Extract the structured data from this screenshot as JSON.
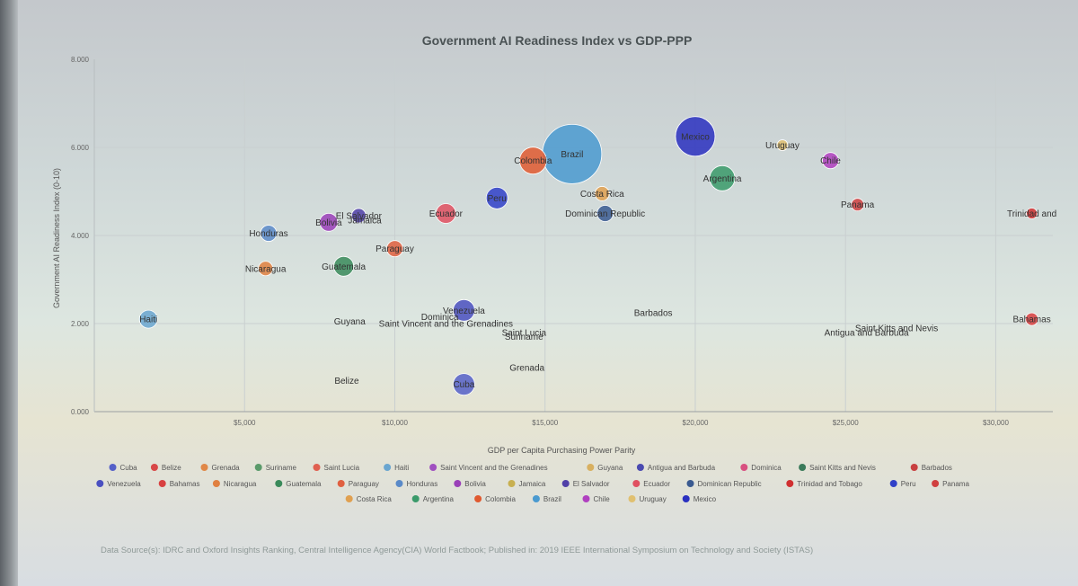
{
  "chart_data": {
    "type": "scatter",
    "title": "Government AI Readiness Index vs GDP-PPP",
    "xlabel": "GDP per Capita Purchasing Power Parity",
    "ylabel": "Government AI Readiness Index (0-10)",
    "xlim": [
      0,
      31900
    ],
    "ylim": [
      0,
      8
    ],
    "x_ticks": [
      5000,
      10000,
      15000,
      20000,
      25000,
      30000
    ],
    "x_tick_labels": [
      "$5,000",
      "$10,000",
      "$15,000",
      "$20,000",
      "$25,000",
      "$30,000"
    ],
    "y_ticks": [
      0,
      2,
      4,
      6,
      8
    ],
    "y_tick_labels": [
      "0.000",
      "2.000",
      "4.000",
      "6.000",
      "8.000"
    ],
    "grid": true,
    "legend_position": "bottom",
    "source": "Data Source(s): IDRC and Oxford Insights Ranking, Central Intelligence Agency(CIA) World Factbook; Published in: 2019 IEEE International Symposium on Technology and Society (ISTAS)",
    "series": [
      {
        "name": "Cuba",
        "x": 12300,
        "y": 0.62,
        "size": 12,
        "color": "#5560c8"
      },
      {
        "name": "Belize",
        "x": 8400,
        "y": 0.7,
        "size": 0,
        "color": "#d84848"
      },
      {
        "name": "Grenada",
        "x": 14400,
        "y": 1.0,
        "size": 0,
        "color": "#e08848"
      },
      {
        "name": "Suriname",
        "x": 14300,
        "y": 1.7,
        "size": 0,
        "color": "#5a9a6a"
      },
      {
        "name": "Saint Lucia",
        "x": 14300,
        "y": 1.8,
        "size": 0,
        "color": "#e06050"
      },
      {
        "name": "Haiti",
        "x": 1800,
        "y": 2.1,
        "size": 10,
        "color": "#6aa6d0"
      },
      {
        "name": "Saint Vincent and the Grenadines",
        "x": 11700,
        "y": 2.0,
        "size": 0,
        "color": "#a050c0"
      },
      {
        "name": "Guyana",
        "x": 8500,
        "y": 2.05,
        "size": 0,
        "color": "#d8b060"
      },
      {
        "name": "Antigua and Barbuda",
        "x": 25700,
        "y": 1.8,
        "size": 0,
        "color": "#4a4ab0"
      },
      {
        "name": "Dominica",
        "x": 11500,
        "y": 2.15,
        "size": 0,
        "color": "#d85080"
      },
      {
        "name": "Saint Kitts and Nevis",
        "x": 26700,
        "y": 1.9,
        "size": 0,
        "color": "#3a7a5a"
      },
      {
        "name": "Barbados",
        "x": 18600,
        "y": 2.25,
        "size": 0,
        "color": "#c84040"
      },
      {
        "name": "Venezuela",
        "x": 12300,
        "y": 2.3,
        "size": 12,
        "color": "#4a50c0"
      },
      {
        "name": "Bahamas",
        "x": 31200,
        "y": 2.1,
        "size": 7,
        "color": "#d84040"
      },
      {
        "name": "Nicaragua",
        "x": 5700,
        "y": 3.25,
        "size": 8,
        "color": "#e08040"
      },
      {
        "name": "Guatemala",
        "x": 8300,
        "y": 3.3,
        "size": 11,
        "color": "#3a8a5a"
      },
      {
        "name": "Paraguay",
        "x": 10000,
        "y": 3.7,
        "size": 9,
        "color": "#e06040"
      },
      {
        "name": "Honduras",
        "x": 5800,
        "y": 4.05,
        "size": 9,
        "color": "#5a8ac8"
      },
      {
        "name": "Bolivia",
        "x": 7800,
        "y": 4.3,
        "size": 10,
        "color": "#9a40b8"
      },
      {
        "name": "Jamaica",
        "x": 9000,
        "y": 4.35,
        "size": 0,
        "color": "#c8b050"
      },
      {
        "name": "El Salvador",
        "x": 8800,
        "y": 4.45,
        "size": 8,
        "color": "#5040a8"
      },
      {
        "name": "Ecuador",
        "x": 11700,
        "y": 4.5,
        "size": 11,
        "color": "#e05060"
      },
      {
        "name": "Dominican Republic",
        "x": 17000,
        "y": 4.5,
        "size": 9,
        "color": "#3a5a90"
      },
      {
        "name": "Trinidad and Tobago",
        "x": 31200,
        "y": 4.5,
        "size": 6,
        "color": "#d03030"
      },
      {
        "name": "Peru",
        "x": 13400,
        "y": 4.85,
        "size": 12,
        "color": "#3040c8"
      },
      {
        "name": "Panama",
        "x": 25400,
        "y": 4.7,
        "size": 7,
        "color": "#d04040"
      },
      {
        "name": "Costa Rica",
        "x": 16900,
        "y": 4.95,
        "size": 8,
        "color": "#e0a050"
      },
      {
        "name": "Argentina",
        "x": 20900,
        "y": 5.3,
        "size": 14,
        "color": "#3a9a6a"
      },
      {
        "name": "Colombia",
        "x": 14600,
        "y": 5.7,
        "size": 15,
        "color": "#e05a30"
      },
      {
        "name": "Brazil",
        "x": 15900,
        "y": 5.85,
        "size": 33,
        "color": "#4a9ad0"
      },
      {
        "name": "Chile",
        "x": 24500,
        "y": 5.7,
        "size": 9,
        "color": "#b040c0"
      },
      {
        "name": "Uruguay",
        "x": 22900,
        "y": 6.05,
        "size": 6,
        "color": "#e0c070"
      },
      {
        "name": "Mexico",
        "x": 20000,
        "y": 6.25,
        "size": 22,
        "color": "#2a30c0"
      }
    ],
    "legend_rows": [
      [
        "Cuba",
        "Belize",
        "Grenada",
        "Suriname",
        "Saint Lucia",
        "Haiti",
        "Saint Vincent and the Grenadines",
        "Guyana",
        "Antigua and Barbuda",
        "Dominica",
        "Saint Kitts and Nevis",
        "Barbados"
      ],
      [
        "Venezuela",
        "Bahamas",
        "Nicaragua",
        "Guatemala",
        "Paraguay",
        "Honduras",
        "Bolivia",
        "Jamaica",
        "El Salvador",
        "Ecuador",
        "Dominican Republic",
        "Trinidad and Tobago",
        "Peru",
        "Panama"
      ],
      [
        "Costa Rica",
        "Argentina",
        "Colombia",
        "Brazil",
        "Chile",
        "Uruguay",
        "Mexico"
      ]
    ]
  },
  "point_labels": {
    "Saint Vincent and the Grenadines": "Saint Vincent and the Grenadines",
    "Saint Lucia": "Saint Lucia",
    "Saint Kitts and Nevis": "Saint Kitts and Nevis",
    "Antigua and Barbuda": "Antigua and Barbuda",
    "Trinidad and Tobago": "Trinidad and"
  }
}
